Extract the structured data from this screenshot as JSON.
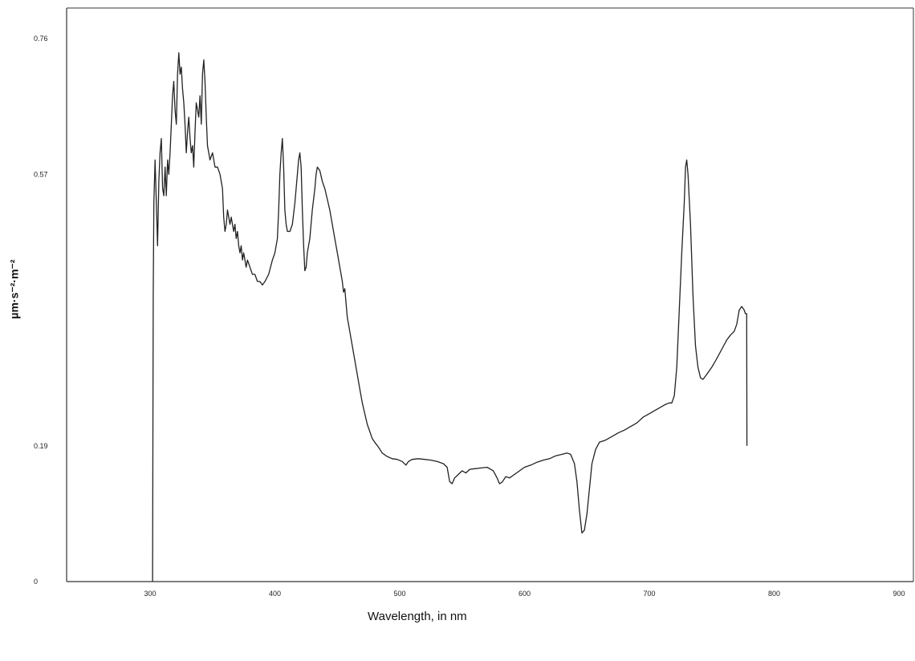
{
  "chart_data": {
    "type": "line",
    "xlabel": "Wavelength, in nm",
    "ylabel": "µm·s⁻²·m⁻²",
    "xlim": [
      240,
      920
    ],
    "ylim": [
      0,
      0.76
    ],
    "x_ticks": [
      300,
      400,
      500,
      600,
      700,
      800,
      900
    ],
    "y_ticks": [
      {
        "value": 0,
        "label": "0"
      },
      {
        "value": 0.19,
        "label": "0.19"
      },
      {
        "value": 0.57,
        "label": "0.57"
      },
      {
        "value": 0.76,
        "label": "0.76"
      }
    ],
    "grid": false,
    "legend": "none",
    "series_color": "#222222",
    "series": [
      {
        "values": [
          [
            302,
            0.0
          ],
          [
            302.5,
            0.4
          ],
          [
            303,
            0.53
          ],
          [
            304,
            0.59
          ],
          [
            305,
            0.53
          ],
          [
            306,
            0.47
          ],
          [
            307,
            0.56
          ],
          [
            308,
            0.6
          ],
          [
            309,
            0.62
          ],
          [
            310,
            0.55
          ],
          [
            311,
            0.54
          ],
          [
            312,
            0.58
          ],
          [
            313,
            0.54
          ],
          [
            314,
            0.59
          ],
          [
            315,
            0.57
          ],
          [
            316,
            0.6
          ],
          [
            318,
            0.68
          ],
          [
            319,
            0.7
          ],
          [
            320,
            0.66
          ],
          [
            321,
            0.64
          ],
          [
            322,
            0.71
          ],
          [
            323,
            0.74
          ],
          [
            324,
            0.71
          ],
          [
            325,
            0.72
          ],
          [
            326,
            0.69
          ],
          [
            327,
            0.67
          ],
          [
            328,
            0.64
          ],
          [
            329,
            0.6
          ],
          [
            330,
            0.63
          ],
          [
            331,
            0.65
          ],
          [
            332,
            0.62
          ],
          [
            333,
            0.6
          ],
          [
            334,
            0.61
          ],
          [
            335,
            0.58
          ],
          [
            336,
            0.63
          ],
          [
            337,
            0.67
          ],
          [
            338,
            0.66
          ],
          [
            339,
            0.65
          ],
          [
            340,
            0.68
          ],
          [
            341,
            0.64
          ],
          [
            342,
            0.71
          ],
          [
            343,
            0.73
          ],
          [
            344,
            0.7
          ],
          [
            345,
            0.65
          ],
          [
            346,
            0.61
          ],
          [
            347,
            0.6
          ],
          [
            348,
            0.59
          ],
          [
            350,
            0.6
          ],
          [
            352,
            0.58
          ],
          [
            354,
            0.58
          ],
          [
            356,
            0.57
          ],
          [
            358,
            0.55
          ],
          [
            359,
            0.51
          ],
          [
            360,
            0.49
          ],
          [
            361,
            0.5
          ],
          [
            362,
            0.52
          ],
          [
            363,
            0.51
          ],
          [
            364,
            0.5
          ],
          [
            365,
            0.51
          ],
          [
            366,
            0.5
          ],
          [
            367,
            0.49
          ],
          [
            368,
            0.5
          ],
          [
            369,
            0.48
          ],
          [
            370,
            0.49
          ],
          [
            371,
            0.47
          ],
          [
            372,
            0.46
          ],
          [
            373,
            0.47
          ],
          [
            374,
            0.45
          ],
          [
            375,
            0.46
          ],
          [
            377,
            0.44
          ],
          [
            378,
            0.45
          ],
          [
            380,
            0.44
          ],
          [
            382,
            0.43
          ],
          [
            384,
            0.43
          ],
          [
            386,
            0.42
          ],
          [
            388,
            0.42
          ],
          [
            390,
            0.415
          ],
          [
            392,
            0.42
          ],
          [
            395,
            0.43
          ],
          [
            398,
            0.45
          ],
          [
            400,
            0.46
          ],
          [
            402,
            0.48
          ],
          [
            403,
            0.52
          ],
          [
            404,
            0.57
          ],
          [
            405,
            0.6
          ],
          [
            406,
            0.62
          ],
          [
            407,
            0.58
          ],
          [
            408,
            0.52
          ],
          [
            409,
            0.5
          ],
          [
            410,
            0.49
          ],
          [
            412,
            0.49
          ],
          [
            414,
            0.5
          ],
          [
            416,
            0.53
          ],
          [
            418,
            0.57
          ],
          [
            419,
            0.59
          ],
          [
            420,
            0.6
          ],
          [
            421,
            0.58
          ],
          [
            422,
            0.52
          ],
          [
            423,
            0.47
          ],
          [
            424,
            0.435
          ],
          [
            425,
            0.44
          ],
          [
            426,
            0.46
          ],
          [
            428,
            0.48
          ],
          [
            430,
            0.52
          ],
          [
            432,
            0.55
          ],
          [
            433,
            0.57
          ],
          [
            434,
            0.58
          ],
          [
            436,
            0.575
          ],
          [
            438,
            0.56
          ],
          [
            440,
            0.55
          ],
          [
            442,
            0.535
          ],
          [
            444,
            0.52
          ],
          [
            446,
            0.5
          ],
          [
            448,
            0.48
          ],
          [
            450,
            0.46
          ],
          [
            452,
            0.44
          ],
          [
            454,
            0.42
          ],
          [
            455,
            0.405
          ],
          [
            456,
            0.41
          ],
          [
            457,
            0.39
          ],
          [
            458,
            0.37
          ],
          [
            460,
            0.35
          ],
          [
            462,
            0.33
          ],
          [
            464,
            0.31
          ],
          [
            466,
            0.29
          ],
          [
            468,
            0.27
          ],
          [
            470,
            0.25
          ],
          [
            472,
            0.235
          ],
          [
            474,
            0.22
          ],
          [
            476,
            0.21
          ],
          [
            478,
            0.2
          ],
          [
            480,
            0.195
          ],
          [
            483,
            0.188
          ],
          [
            486,
            0.18
          ],
          [
            490,
            0.175
          ],
          [
            494,
            0.172
          ],
          [
            498,
            0.171
          ],
          [
            502,
            0.168
          ],
          [
            505,
            0.163
          ],
          [
            507,
            0.168
          ],
          [
            510,
            0.171
          ],
          [
            515,
            0.172
          ],
          [
            520,
            0.171
          ],
          [
            525,
            0.17
          ],
          [
            530,
            0.168
          ],
          [
            535,
            0.165
          ],
          [
            538,
            0.16
          ],
          [
            540,
            0.14
          ],
          [
            542,
            0.137
          ],
          [
            544,
            0.145
          ],
          [
            547,
            0.15
          ],
          [
            550,
            0.155
          ],
          [
            553,
            0.152
          ],
          [
            556,
            0.157
          ],
          [
            560,
            0.158
          ],
          [
            565,
            0.159
          ],
          [
            570,
            0.16
          ],
          [
            575,
            0.155
          ],
          [
            578,
            0.145
          ],
          [
            580,
            0.137
          ],
          [
            582,
            0.139
          ],
          [
            585,
            0.147
          ],
          [
            588,
            0.145
          ],
          [
            592,
            0.15
          ],
          [
            596,
            0.155
          ],
          [
            600,
            0.16
          ],
          [
            605,
            0.163
          ],
          [
            610,
            0.167
          ],
          [
            615,
            0.17
          ],
          [
            620,
            0.172
          ],
          [
            625,
            0.176
          ],
          [
            630,
            0.178
          ],
          [
            634,
            0.18
          ],
          [
            637,
            0.178
          ],
          [
            640,
            0.165
          ],
          [
            642,
            0.14
          ],
          [
            644,
            0.1
          ],
          [
            646,
            0.068
          ],
          [
            648,
            0.072
          ],
          [
            650,
            0.095
          ],
          [
            652,
            0.13
          ],
          [
            654,
            0.165
          ],
          [
            657,
            0.185
          ],
          [
            660,
            0.195
          ],
          [
            665,
            0.198
          ],
          [
            670,
            0.203
          ],
          [
            675,
            0.208
          ],
          [
            680,
            0.212
          ],
          [
            685,
            0.217
          ],
          [
            690,
            0.222
          ],
          [
            695,
            0.23
          ],
          [
            700,
            0.235
          ],
          [
            705,
            0.24
          ],
          [
            710,
            0.245
          ],
          [
            713,
            0.248
          ],
          [
            716,
            0.25
          ],
          [
            718,
            0.25
          ],
          [
            720,
            0.26
          ],
          [
            722,
            0.3
          ],
          [
            724,
            0.38
          ],
          [
            726,
            0.46
          ],
          [
            728,
            0.53
          ],
          [
            729,
            0.58
          ],
          [
            730,
            0.59
          ],
          [
            731,
            0.57
          ],
          [
            733,
            0.5
          ],
          [
            735,
            0.4
          ],
          [
            737,
            0.33
          ],
          [
            739,
            0.3
          ],
          [
            741,
            0.285
          ],
          [
            743,
            0.283
          ],
          [
            746,
            0.29
          ],
          [
            750,
            0.3
          ],
          [
            754,
            0.312
          ],
          [
            758,
            0.325
          ],
          [
            762,
            0.338
          ],
          [
            765,
            0.345
          ],
          [
            768,
            0.35
          ],
          [
            770,
            0.36
          ],
          [
            772,
            0.38
          ],
          [
            774,
            0.385
          ],
          [
            776,
            0.38
          ],
          [
            777,
            0.375
          ],
          [
            778,
            0.375
          ],
          [
            778.2,
            0.19
          ]
        ]
      }
    ]
  }
}
